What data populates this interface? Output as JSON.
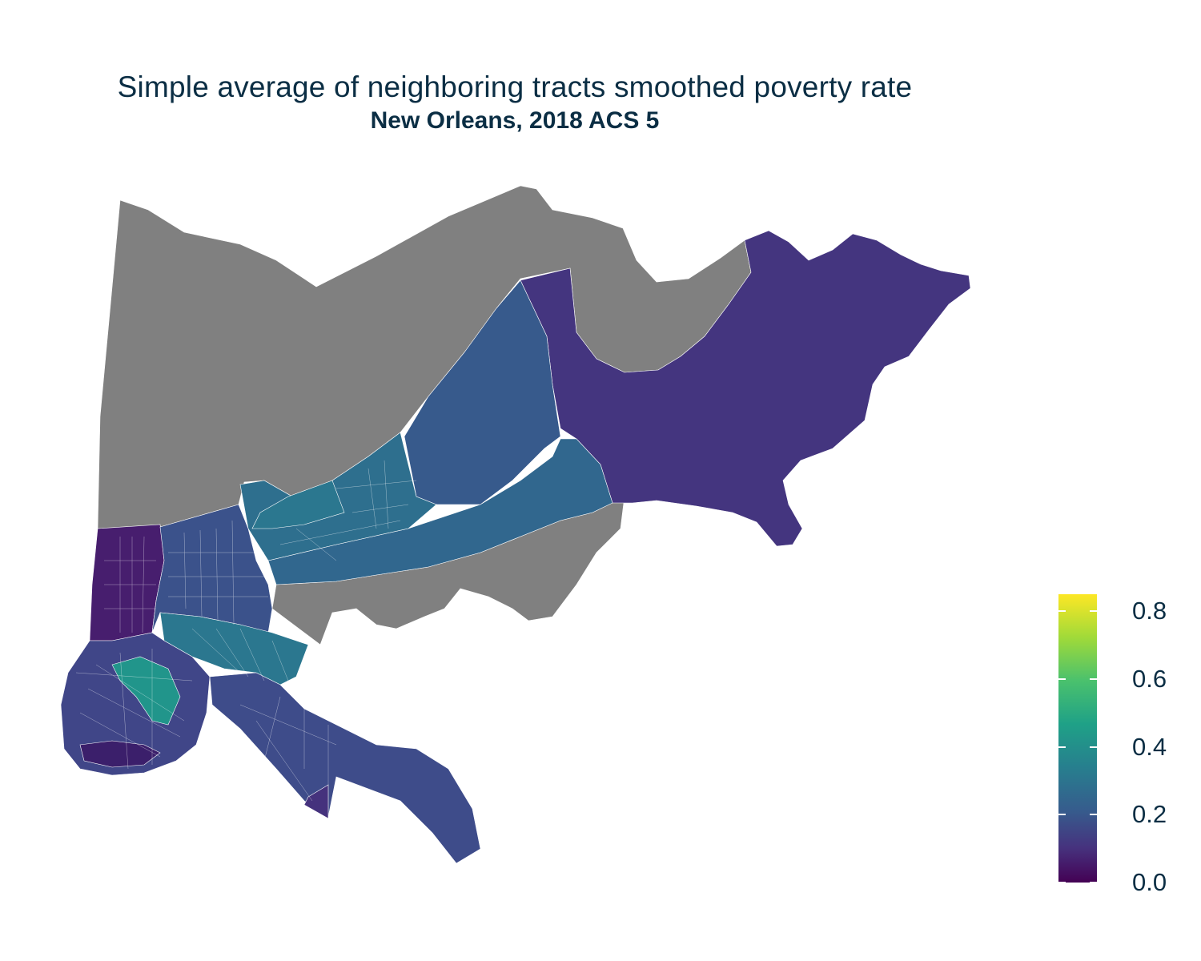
{
  "title": "Simple average of neighboring tracts smoothed poverty rate",
  "subtitle": "New Orleans, 2018 ACS 5",
  "colors": {
    "missing": "#808080",
    "scale_low": "#440154",
    "scale_high": "#fde725",
    "text": "#0b2e44"
  },
  "legend": {
    "scale": "viridis",
    "range": [
      0,
      0.85
    ],
    "ticks": [
      {
        "value": 0.0,
        "label": "0.0"
      },
      {
        "value": 0.2,
        "label": "0.2"
      },
      {
        "value": 0.4,
        "label": "0.4"
      },
      {
        "value": 0.6,
        "label": "0.6"
      },
      {
        "value": 0.8,
        "label": "0.8"
      }
    ]
  },
  "regions": [
    {
      "id": "lakefront-north",
      "value": null
    },
    {
      "id": "new-orleans-east",
      "value": 0.15
    },
    {
      "id": "gentilly-north",
      "value": 0.27
    },
    {
      "id": "gentilly-east-corridor",
      "value": 0.32
    },
    {
      "id": "river-industrial",
      "value": null
    },
    {
      "id": "lakeview-west",
      "value": 0.08
    },
    {
      "id": "mid-city",
      "value": 0.24
    },
    {
      "id": "seventh-ward",
      "value": 0.38
    },
    {
      "id": "uptown",
      "value": 0.2
    },
    {
      "id": "central-city",
      "value": 0.5
    },
    {
      "id": "algiers",
      "value": 0.22
    },
    {
      "id": "lower-ninth",
      "value": 0.14
    }
  ]
}
